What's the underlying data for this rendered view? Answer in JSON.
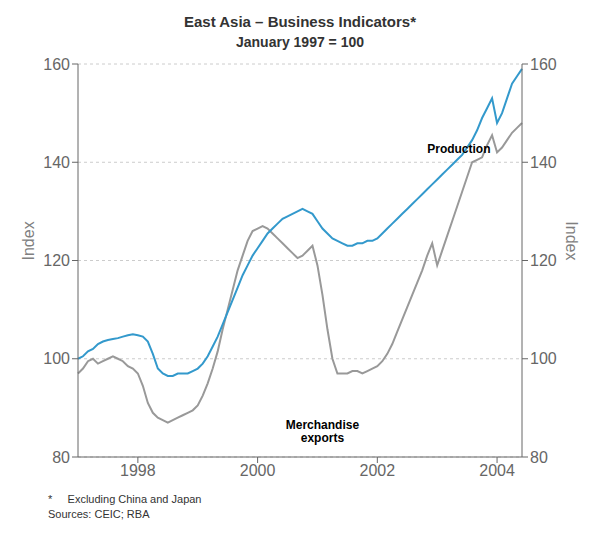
{
  "chart_data": {
    "type": "line",
    "title": "East Asia – Business Indicators*",
    "subtitle": "January 1997 = 100",
    "y_label": "Index",
    "y2_label": "Index",
    "ylim": [
      80,
      160
    ],
    "yticks": [
      80,
      100,
      120,
      140,
      160
    ],
    "y2lim": [
      80,
      160
    ],
    "y2ticks": [
      80,
      100,
      120,
      140,
      160
    ],
    "grid": true,
    "categories": [
      null,
      null,
      null,
      null,
      null,
      null,
      null,
      null,
      null,
      null,
      null,
      null,
      "1998",
      null,
      null,
      null,
      null,
      null,
      null,
      null,
      null,
      null,
      null,
      null,
      null,
      null,
      null,
      null,
      null,
      null,
      null,
      null,
      null,
      null,
      null,
      null,
      "2000",
      null,
      null,
      null,
      null,
      null,
      null,
      null,
      null,
      null,
      null,
      null,
      null,
      null,
      null,
      null,
      null,
      null,
      null,
      null,
      null,
      null,
      null,
      null,
      "2002",
      null,
      null,
      null,
      null,
      null,
      null,
      null,
      null,
      null,
      null,
      null,
      null,
      null,
      null,
      null,
      null,
      null,
      null,
      null,
      null,
      null,
      null,
      null,
      "2004",
      null,
      null,
      null,
      null,
      null
    ],
    "series": [
      {
        "color": "#3399cc",
        "values": [
          100.0,
          100.5,
          101.5,
          102.0,
          103.0,
          103.5,
          103.8,
          104.0,
          104.2,
          104.5,
          104.8,
          105.0,
          104.8,
          104.5,
          103.5,
          101.0,
          98.0,
          97.0,
          96.5,
          96.5,
          97.0,
          97.0,
          97.0,
          97.5,
          98.0,
          99.0,
          100.5,
          102.5,
          104.5,
          107.0,
          109.5,
          112.0,
          114.5,
          117.0,
          119.0,
          121.0,
          122.5,
          124.0,
          125.5,
          126.5,
          127.5,
          128.5,
          129.0,
          129.5,
          130.0,
          130.5,
          130.0,
          129.5,
          128.0,
          126.5,
          125.5,
          124.5,
          124.0,
          123.5,
          123.0,
          123.0,
          123.5,
          123.5,
          124.0,
          124.0,
          124.5,
          125.5,
          126.5,
          127.5,
          128.5,
          129.5,
          130.5,
          131.5,
          132.5,
          133.5,
          134.5,
          135.5,
          136.5,
          137.5,
          138.5,
          139.5,
          140.5,
          141.5,
          143.0,
          144.5,
          146.5,
          149.0,
          151.0,
          153.0,
          148.0,
          150.0,
          153.0,
          156.0,
          157.5,
          159.0
        ]
      },
      {
        "color": "#999999",
        "values": [
          97.0,
          98.0,
          99.5,
          100.0,
          99.0,
          99.5,
          100.0,
          100.5,
          100.0,
          99.5,
          98.5,
          98.0,
          97.0,
          94.5,
          91.0,
          89.0,
          88.0,
          87.5,
          87.0,
          87.5,
          88.0,
          88.5,
          89.0,
          89.5,
          90.5,
          92.5,
          95.0,
          98.0,
          101.5,
          106.0,
          110.0,
          114.0,
          118.0,
          121.0,
          124.0,
          126.0,
          126.5,
          127.0,
          126.5,
          125.5,
          124.5,
          123.5,
          122.5,
          121.5,
          120.5,
          121.0,
          122.0,
          123.0,
          119.0,
          113.0,
          106.0,
          100.0,
          97.0,
          97.0,
          97.0,
          97.5,
          97.5,
          97.0,
          97.5,
          98.0,
          98.5,
          99.5,
          101.0,
          103.0,
          105.5,
          108.0,
          110.5,
          113.0,
          115.5,
          118.0,
          121.0,
          123.5,
          119.0,
          122.0,
          125.0,
          128.0,
          131.0,
          134.0,
          137.0,
          140.0,
          140.5,
          141.0,
          143.5,
          145.5,
          142.0,
          143.0,
          144.5,
          146.0,
          147.0,
          148.0
        ]
      }
    ],
    "annotations": [
      {
        "text": "Production",
        "x": 70,
        "y": 141,
        "align": "left",
        "anchor": "bottom"
      },
      {
        "text": "Merchandise\nexports",
        "x": 49,
        "y": 88,
        "align": "center",
        "anchor": "top"
      }
    ],
    "footnotes": [
      "*     Excluding China and Japan",
      "Sources: CEIC; RBA"
    ]
  }
}
